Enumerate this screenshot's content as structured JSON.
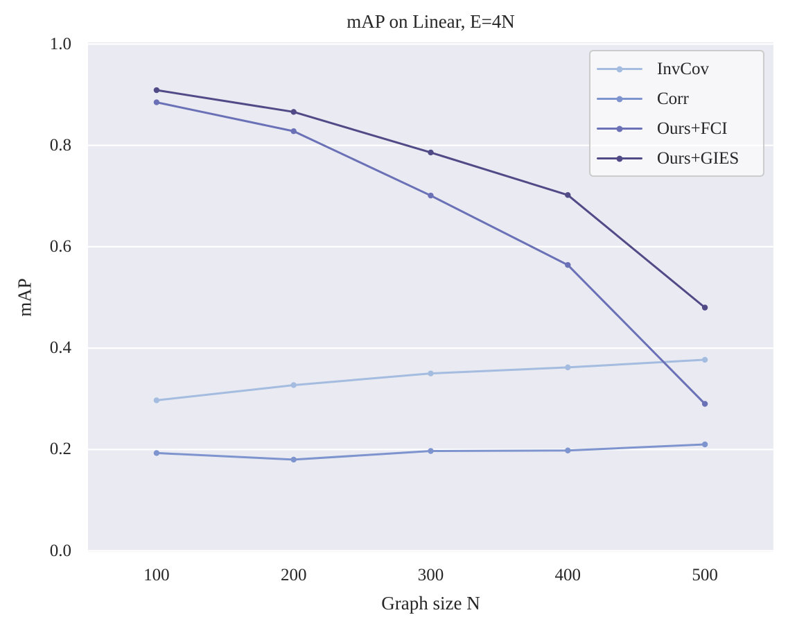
{
  "chart_data": {
    "type": "line",
    "title": "mAP on Linear, E=4N",
    "xlabel": "Graph size N",
    "ylabel": "mAP",
    "x": [
      100,
      200,
      300,
      400,
      500
    ],
    "xticks": [
      "100",
      "200",
      "300",
      "400",
      "500"
    ],
    "yticks": [
      0.0,
      0.2,
      0.4,
      0.6,
      0.8,
      1.0
    ],
    "ylim": [
      0.0,
      1.0
    ],
    "grid": true,
    "legend_position": "upper right",
    "series": [
      {
        "name": "InvCov",
        "color": "#a3bcdf",
        "values": [
          0.297,
          0.327,
          0.35,
          0.362,
          0.377
        ]
      },
      {
        "name": "Corr",
        "color": "#7e94ce",
        "values": [
          0.193,
          0.18,
          0.197,
          0.198,
          0.21
        ]
      },
      {
        "name": "Ours+FCI",
        "color": "#6a71b6",
        "values": [
          0.885,
          0.828,
          0.701,
          0.564,
          0.29
        ]
      },
      {
        "name": "Ours+GIES",
        "color": "#504b87",
        "values": [
          0.909,
          0.866,
          0.786,
          0.702,
          0.48
        ]
      }
    ],
    "colors": {
      "plot_bg": "#eaeaf2",
      "grid": "#ffffff",
      "text": "#262626",
      "legend_border": "#cccccc",
      "legend_bg": "#fbfbfd"
    }
  }
}
